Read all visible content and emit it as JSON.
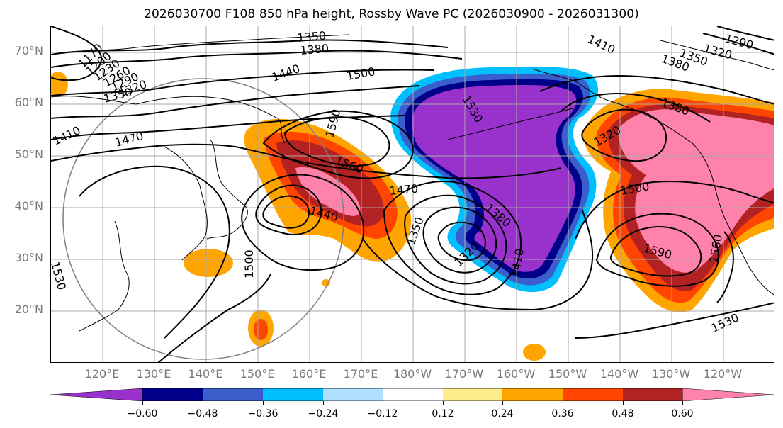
{
  "title": "2026030700 F108 850 hPa height, Rossby Wave PC (2026030900 - 2026031300)",
  "lat_labels": [
    "70°N",
    "60°N",
    "50°N",
    "40°N",
    "30°N",
    "20°N"
  ],
  "lon_labels": [
    "120°E",
    "130°E",
    "140°E",
    "150°E",
    "160°E",
    "170°E",
    "180°W",
    "170°W",
    "160°W",
    "150°W",
    "140°W",
    "130°W",
    "120°W"
  ],
  "colorbar": {
    "colors": [
      "#9932cc",
      "#00008b",
      "#3a5fcd",
      "#00bfff",
      "#b0e2ff",
      "#ffffff",
      "#ffec8b",
      "#ffa500",
      "#ff4500",
      "#b22222",
      "#ff82ab"
    ],
    "ticks": [
      "−0.60",
      "−0.48",
      "−0.36",
      "−0.24",
      "−0.12",
      "0.12",
      "0.24",
      "0.36",
      "0.48",
      "0.60"
    ]
  },
  "contour_labels": [
    "1350",
    "1380",
    "1170",
    "1200",
    "1230",
    "1260",
    "1290",
    "1320",
    "1350",
    "1410",
    "1470",
    "1440",
    "1500",
    "1590",
    "1560",
    "1470",
    "1440",
    "1530",
    "1500",
    "1350",
    "1320",
    "1380",
    "1410",
    "1530",
    "1320",
    "1410",
    "1380",
    "1350",
    "1320",
    "1290",
    "1380",
    "1500",
    "1590",
    "1560",
    "1530"
  ]
}
